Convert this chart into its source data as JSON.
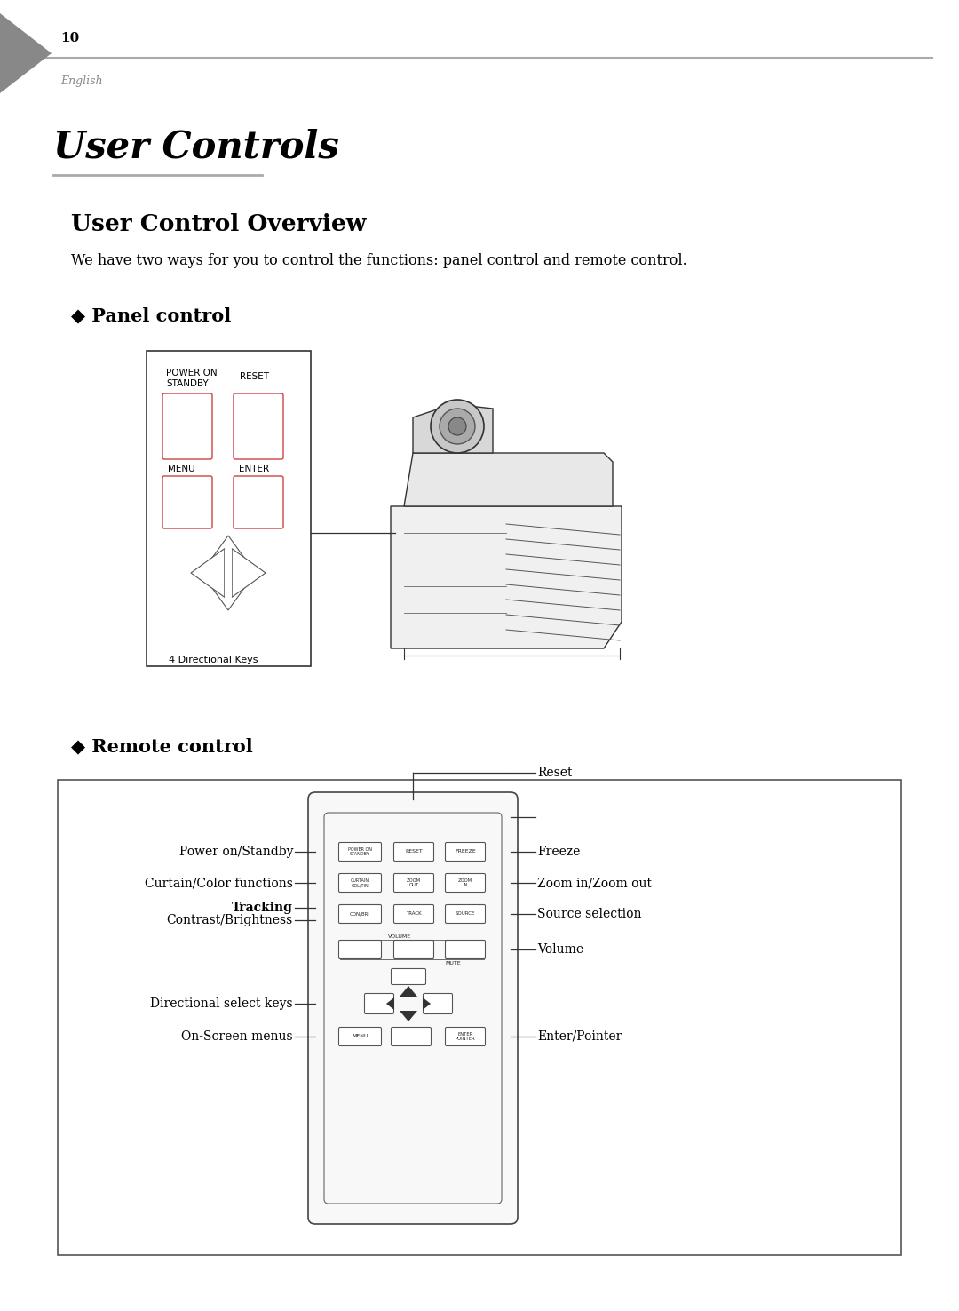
{
  "page_number": "10",
  "page_label": "English",
  "title": "User Controls",
  "section_title": "User Control Overview",
  "section_body": "We have two ways for you to control the functions: panel control and remote control.",
  "panel_heading": "◆ Panel control",
  "remote_heading": "◆ Remote control",
  "panel_keys_label": "4 Directional Keys",
  "remote_left_labels": [
    "Power on/Standby",
    "Curtain/Color functions",
    "Tracking",
    "Contrast/Brightness",
    "Directional select keys",
    "On-Screen menus"
  ],
  "remote_right_labels": [
    "Reset",
    "Freeze",
    "Zoom in/Zoom out",
    "Source selection",
    "Volume",
    "Enter/Pointer"
  ],
  "bg_color": "#ffffff",
  "text_color": "#000000",
  "gray_color": "#888888",
  "border_color": "#333333",
  "button_edge": "#555555"
}
